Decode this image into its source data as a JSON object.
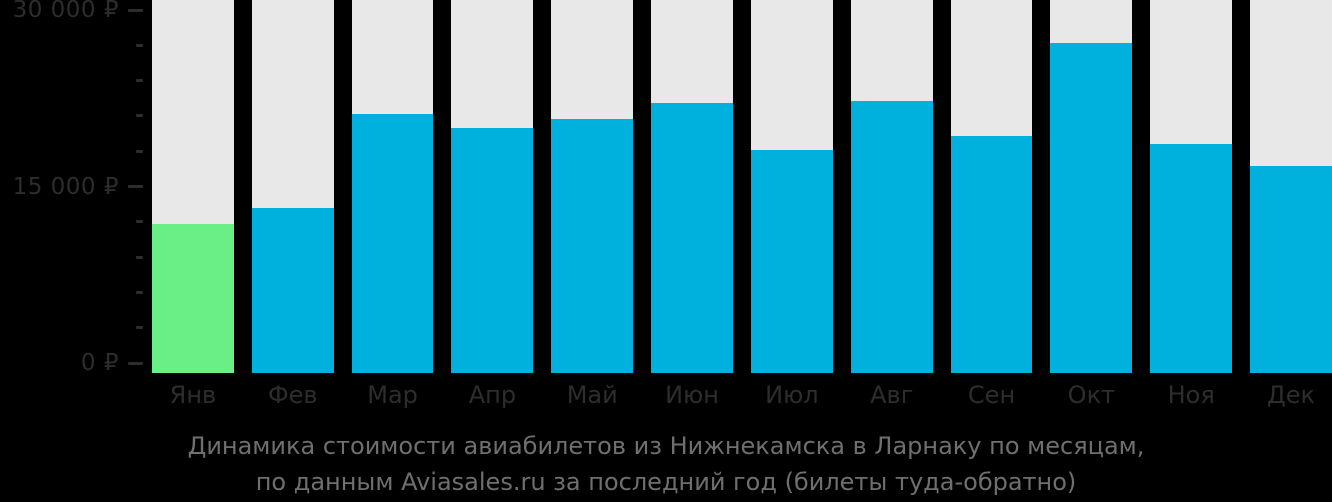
{
  "chart_data": {
    "type": "bar",
    "title": "Динамика стоимости авиабилетов из Нижнекамска в Ларнаку по месяцам,",
    "subtitle": "по данным Aviasales.ru за последний год (билеты туда-обратно)",
    "categories": [
      "Янв",
      "Фев",
      "Мар",
      "Апр",
      "Май",
      "Июн",
      "Июл",
      "Авг",
      "Сен",
      "Окт",
      "Ноя",
      "Дек"
    ],
    "values": [
      11850,
      13150,
      21200,
      19950,
      20750,
      22100,
      18100,
      22250,
      19300,
      27200,
      18650,
      16700
    ],
    "currency": "₽",
    "ylim": [
      0,
      30000
    ],
    "yticks": [
      {
        "value": 30000,
        "label": "30 000 ₽",
        "major": true
      },
      {
        "value": 27000,
        "label": "",
        "major": false
      },
      {
        "value": 24000,
        "label": "",
        "major": false
      },
      {
        "value": 21000,
        "label": "",
        "major": false
      },
      {
        "value": 18000,
        "label": "",
        "major": false
      },
      {
        "value": 15000,
        "label": "15 000 ₽",
        "major": true
      },
      {
        "value": 12000,
        "label": "",
        "major": false
      },
      {
        "value": 9000,
        "label": "",
        "major": false
      },
      {
        "value": 6000,
        "label": "",
        "major": false
      },
      {
        "value": 3000,
        "label": "",
        "major": false
      },
      {
        "value": 0,
        "label": "0 ₽",
        "major": true
      }
    ],
    "highlight_index": 0,
    "legend": "none",
    "grid": "off",
    "colors": {
      "background": "#000000",
      "column_background": "#e8e8e8",
      "bar_default": "#00b0dd",
      "bar_highlight": "#6aef87",
      "axis_text": "#2d2d2d",
      "caption_text": "#6f6f6f"
    }
  }
}
